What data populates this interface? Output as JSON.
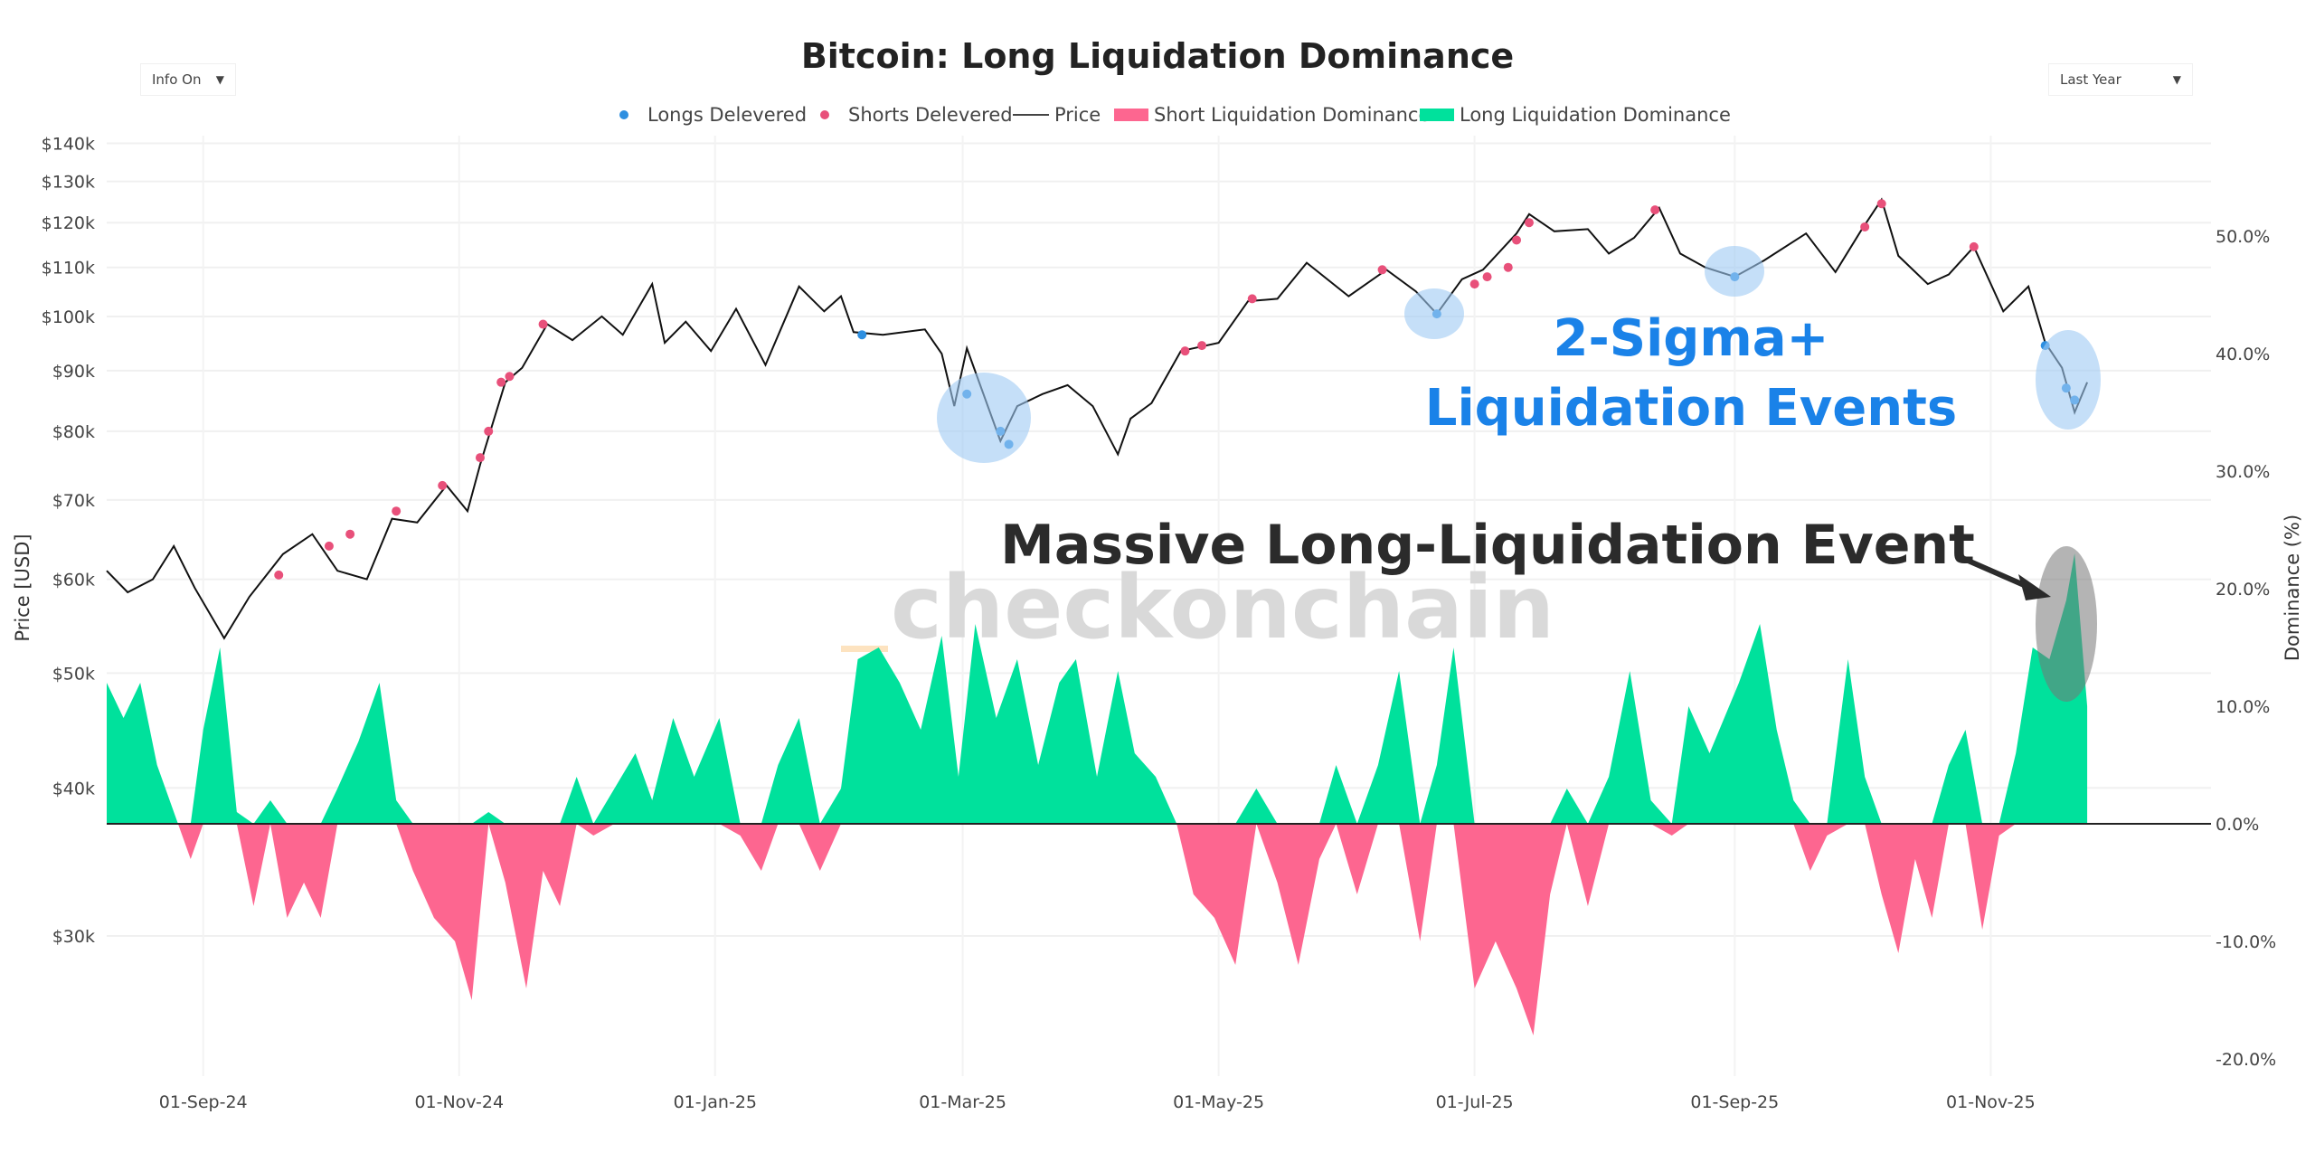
{
  "controls": {
    "info_label": "Info On",
    "range_label": "Last Year",
    "caret": "▼"
  },
  "chart_data": {
    "type": "line",
    "title": "Bitcoin: Long Liquidation Dominance",
    "ylabel": "Price [USD]",
    "y2label": "Dominance (%)",
    "legend": [
      "Longs Delevered",
      "Shorts Delevered",
      "Price",
      "Short Liquidation Dominance",
      "Long Liquidation Dominance"
    ],
    "legend_position": "top-center",
    "colors": {
      "longs": "#2e8fe0",
      "shorts": "#e8507a",
      "price": "#111111",
      "short_dom": "#fd6690",
      "long_dom": "#00e19c"
    },
    "yscale": "log",
    "ylim": [
      25000,
      145000
    ],
    "y_ticks": [
      {
        "v": 140000,
        "l": "$140k"
      },
      {
        "v": 130000,
        "l": "$130k"
      },
      {
        "v": 120000,
        "l": "$120k"
      },
      {
        "v": 110000,
        "l": "$110k"
      },
      {
        "v": 100000,
        "l": "$100k"
      },
      {
        "v": 90000,
        "l": "$90k"
      },
      {
        "v": 80000,
        "l": "$80k"
      },
      {
        "v": 70000,
        "l": "$70k"
      },
      {
        "v": 60000,
        "l": "$60k"
      },
      {
        "v": 50000,
        "l": "$50k"
      },
      {
        "v": 40000,
        "l": "$40k"
      },
      {
        "v": 30000,
        "l": "$30k"
      }
    ],
    "y2lim": [
      -20,
      50
    ],
    "y2_ticks": [
      {
        "v": 50,
        "l": "50.0%"
      },
      {
        "v": 40,
        "l": "40.0%"
      },
      {
        "v": 30,
        "l": "30.0%"
      },
      {
        "v": 20,
        "l": "20.0%"
      },
      {
        "v": 10,
        "l": "10.0%"
      },
      {
        "v": 0,
        "l": "0.0%"
      },
      {
        "v": -10,
        "l": "-10.0%"
      },
      {
        "v": -20,
        "l": "-20.0%"
      }
    ],
    "x_ticks": [
      {
        "d": "2024-09-01",
        "l": "01-Sep-24"
      },
      {
        "d": "2024-11-01",
        "l": "01-Nov-24"
      },
      {
        "d": "2025-01-01",
        "l": "01-Jan-25"
      },
      {
        "d": "2025-03-01",
        "l": "01-Mar-25"
      },
      {
        "d": "2025-05-01",
        "l": "01-May-25"
      },
      {
        "d": "2025-07-01",
        "l": "01-Jul-25"
      },
      {
        "d": "2025-09-01",
        "l": "01-Sep-25"
      },
      {
        "d": "2025-11-01",
        "l": "01-Nov-25"
      }
    ],
    "price": [
      [
        "2024-08-09",
        61000
      ],
      [
        "2024-08-14",
        58500
      ],
      [
        "2024-08-20",
        60000
      ],
      [
        "2024-08-25",
        64000
      ],
      [
        "2024-08-30",
        59000
      ],
      [
        "2024-09-06",
        53500
      ],
      [
        "2024-09-12",
        58000
      ],
      [
        "2024-09-20",
        63000
      ],
      [
        "2024-09-27",
        65500
      ],
      [
        "2024-10-03",
        61000
      ],
      [
        "2024-10-10",
        60000
      ],
      [
        "2024-10-16",
        67500
      ],
      [
        "2024-10-22",
        67000
      ],
      [
        "2024-10-29",
        72000
      ],
      [
        "2024-11-03",
        68500
      ],
      [
        "2024-11-06",
        75000
      ],
      [
        "2024-11-12",
        88000
      ],
      [
        "2024-11-16",
        90500
      ],
      [
        "2024-11-22",
        98500
      ],
      [
        "2024-11-28",
        95500
      ],
      [
        "2024-12-05",
        100000
      ],
      [
        "2024-12-10",
        96500
      ],
      [
        "2024-12-17",
        106500
      ],
      [
        "2024-12-20",
        95000
      ],
      [
        "2024-12-25",
        99000
      ],
      [
        "2024-12-31",
        93500
      ],
      [
        "2025-01-06",
        101500
      ],
      [
        "2025-01-13",
        91000
      ],
      [
        "2025-01-21",
        106000
      ],
      [
        "2025-01-27",
        101000
      ],
      [
        "2025-01-31",
        104000
      ],
      [
        "2025-02-03",
        97000
      ],
      [
        "2025-02-10",
        96500
      ],
      [
        "2025-02-20",
        97500
      ],
      [
        "2025-02-24",
        93000
      ],
      [
        "2025-02-27",
        84000
      ],
      [
        "2025-03-02",
        94000
      ],
      [
        "2025-03-10",
        78500
      ],
      [
        "2025-03-14",
        84000
      ],
      [
        "2025-03-20",
        86000
      ],
      [
        "2025-03-26",
        87500
      ],
      [
        "2025-04-01",
        84000
      ],
      [
        "2025-04-07",
        76500
      ],
      [
        "2025-04-10",
        82000
      ],
      [
        "2025-04-15",
        84500
      ],
      [
        "2025-04-22",
        93500
      ],
      [
        "2025-05-01",
        95000
      ],
      [
        "2025-05-08",
        103000
      ],
      [
        "2025-05-15",
        103500
      ],
      [
        "2025-05-22",
        111000
      ],
      [
        "2025-06-01",
        104000
      ],
      [
        "2025-06-10",
        109500
      ],
      [
        "2025-06-17",
        105000
      ],
      [
        "2025-06-22",
        100500
      ],
      [
        "2025-06-28",
        107500
      ],
      [
        "2025-07-03",
        109500
      ],
      [
        "2025-07-11",
        117500
      ],
      [
        "2025-07-14",
        122000
      ],
      [
        "2025-07-20",
        118000
      ],
      [
        "2025-07-28",
        118500
      ],
      [
        "2025-08-02",
        113000
      ],
      [
        "2025-08-08",
        116500
      ],
      [
        "2025-08-14",
        123500
      ],
      [
        "2025-08-19",
        113000
      ],
      [
        "2025-08-25",
        110000
      ],
      [
        "2025-09-01",
        108000
      ],
      [
        "2025-09-08",
        111500
      ],
      [
        "2025-09-18",
        117500
      ],
      [
        "2025-09-25",
        109000
      ],
      [
        "2025-10-01",
        118000
      ],
      [
        "2025-10-06",
        125500
      ],
      [
        "2025-10-10",
        112500
      ],
      [
        "2025-10-17",
        106500
      ],
      [
        "2025-10-22",
        108500
      ],
      [
        "2025-10-28",
        114500
      ],
      [
        "2025-11-04",
        101000
      ],
      [
        "2025-11-10",
        106000
      ],
      [
        "2025-11-14",
        95000
      ],
      [
        "2025-11-18",
        90500
      ],
      [
        "2025-11-21",
        83000
      ],
      [
        "2025-11-24",
        88000
      ]
    ],
    "dominance": [
      [
        "2024-08-09",
        12
      ],
      [
        "2024-08-13",
        9
      ],
      [
        "2024-08-17",
        12
      ],
      [
        "2024-08-21",
        5
      ],
      [
        "2024-08-26",
        0
      ],
      [
        "2024-08-29",
        -3
      ],
      [
        "2024-09-01",
        8
      ],
      [
        "2024-09-05",
        15
      ],
      [
        "2024-09-09",
        1
      ],
      [
        "2024-09-13",
        -7
      ],
      [
        "2024-09-17",
        2
      ],
      [
        "2024-09-21",
        -8
      ],
      [
        "2024-09-25",
        -5
      ],
      [
        "2024-09-29",
        -8
      ],
      [
        "2024-10-03",
        3
      ],
      [
        "2024-10-08",
        7
      ],
      [
        "2024-10-13",
        12
      ],
      [
        "2024-10-17",
        2
      ],
      [
        "2024-10-21",
        -4
      ],
      [
        "2024-10-26",
        -8
      ],
      [
        "2024-10-31",
        -10
      ],
      [
        "2024-11-04",
        -15
      ],
      [
        "2024-11-08",
        1
      ],
      [
        "2024-11-12",
        -5
      ],
      [
        "2024-11-17",
        -14
      ],
      [
        "2024-11-21",
        -4
      ],
      [
        "2024-11-25",
        -7
      ],
      [
        "2024-11-29",
        4
      ],
      [
        "2024-12-03",
        -1
      ],
      [
        "2024-12-08",
        3
      ],
      [
        "2024-12-13",
        6
      ],
      [
        "2024-12-17",
        2
      ],
      [
        "2024-12-22",
        9
      ],
      [
        "2024-12-27",
        4
      ],
      [
        "2025-01-02",
        9
      ],
      [
        "2025-01-07",
        -1
      ],
      [
        "2025-01-12",
        -4
      ],
      [
        "2025-01-16",
        5
      ],
      [
        "2025-01-21",
        9
      ],
      [
        "2025-01-26",
        -4
      ],
      [
        "2025-01-31",
        3
      ],
      [
        "2025-02-04",
        14
      ],
      [
        "2025-02-09",
        15
      ],
      [
        "2025-02-14",
        12
      ],
      [
        "2025-02-19",
        8
      ],
      [
        "2025-02-24",
        16
      ],
      [
        "2025-02-28",
        4
      ],
      [
        "2025-03-04",
        17
      ],
      [
        "2025-03-09",
        9
      ],
      [
        "2025-03-14",
        14
      ],
      [
        "2025-03-19",
        5
      ],
      [
        "2025-03-24",
        12
      ],
      [
        "2025-03-28",
        14
      ],
      [
        "2025-04-02",
        4
      ],
      [
        "2025-04-07",
        13
      ],
      [
        "2025-04-11",
        6
      ],
      [
        "2025-04-16",
        4
      ],
      [
        "2025-04-21",
        0
      ],
      [
        "2025-04-25",
        -6
      ],
      [
        "2025-04-30",
        -8
      ],
      [
        "2025-05-05",
        -12
      ],
      [
        "2025-05-10",
        3
      ],
      [
        "2025-05-15",
        -5
      ],
      [
        "2025-05-20",
        -12
      ],
      [
        "2025-05-25",
        -3
      ],
      [
        "2025-05-29",
        5
      ],
      [
        "2025-06-03",
        -6
      ],
      [
        "2025-06-08",
        5
      ],
      [
        "2025-06-13",
        13
      ],
      [
        "2025-06-18",
        -10
      ],
      [
        "2025-06-22",
        5
      ],
      [
        "2025-06-26",
        15
      ],
      [
        "2025-07-01",
        -14
      ],
      [
        "2025-07-06",
        -10
      ],
      [
        "2025-07-11",
        -14
      ],
      [
        "2025-07-15",
        -18
      ],
      [
        "2025-07-19",
        -6
      ],
      [
        "2025-07-23",
        3
      ],
      [
        "2025-07-28",
        -7
      ],
      [
        "2025-08-02",
        4
      ],
      [
        "2025-08-07",
        13
      ],
      [
        "2025-08-12",
        2
      ],
      [
        "2025-08-17",
        -1
      ],
      [
        "2025-08-21",
        10
      ],
      [
        "2025-08-26",
        6
      ],
      [
        "2025-09-02",
        12
      ],
      [
        "2025-09-07",
        17
      ],
      [
        "2025-09-11",
        8
      ],
      [
        "2025-09-15",
        2
      ],
      [
        "2025-09-19",
        -4
      ],
      [
        "2025-09-23",
        -1
      ],
      [
        "2025-09-28",
        14
      ],
      [
        "2025-10-02",
        4
      ],
      [
        "2025-10-06",
        -6
      ],
      [
        "2025-10-10",
        -11
      ],
      [
        "2025-10-14",
        -3
      ],
      [
        "2025-10-18",
        -8
      ],
      [
        "2025-10-22",
        5
      ],
      [
        "2025-10-26",
        8
      ],
      [
        "2025-10-30",
        -9
      ],
      [
        "2025-11-03",
        -1
      ],
      [
        "2025-11-07",
        6
      ],
      [
        "2025-11-11",
        15
      ],
      [
        "2025-11-15",
        14
      ],
      [
        "2025-11-19",
        19
      ],
      [
        "2025-11-21",
        23
      ],
      [
        "2025-11-24",
        10
      ]
    ],
    "longs_delevered": [
      [
        "2025-02-05",
        96500
      ],
      [
        "2025-03-02",
        86000
      ],
      [
        "2025-03-10",
        80000
      ],
      [
        "2025-03-12",
        78000
      ],
      [
        "2025-06-22",
        100500
      ],
      [
        "2025-09-01",
        108000
      ],
      [
        "2025-11-14",
        94500
      ],
      [
        "2025-11-19",
        87000
      ],
      [
        "2025-11-21",
        85000
      ]
    ],
    "shorts_delevered": [
      [
        "2024-09-19",
        60500
      ],
      [
        "2024-10-01",
        64000
      ],
      [
        "2024-10-06",
        65500
      ],
      [
        "2024-10-17",
        68500
      ],
      [
        "2024-10-28",
        72000
      ],
      [
        "2024-11-06",
        76000
      ],
      [
        "2024-11-08",
        80000
      ],
      [
        "2024-11-11",
        88000
      ],
      [
        "2024-11-13",
        89000
      ],
      [
        "2024-11-21",
        98500
      ],
      [
        "2025-04-23",
        93500
      ],
      [
        "2025-04-27",
        94500
      ],
      [
        "2025-05-09",
        103500
      ],
      [
        "2025-06-09",
        109500
      ],
      [
        "2025-07-01",
        106500
      ],
      [
        "2025-07-04",
        108000
      ],
      [
        "2025-07-09",
        110000
      ],
      [
        "2025-07-11",
        116000
      ],
      [
        "2025-07-14",
        120000
      ],
      [
        "2025-08-13",
        123000
      ],
      [
        "2025-10-02",
        119000
      ],
      [
        "2025-10-06",
        124500
      ],
      [
        "2025-10-28",
        114500
      ]
    ],
    "annotations": {
      "sigma_line1": "2-Sigma+",
      "sigma_line2": "Liquidation Events",
      "massive": "Massive Long-Liquidation Event",
      "watermark": "checkonchain"
    }
  }
}
